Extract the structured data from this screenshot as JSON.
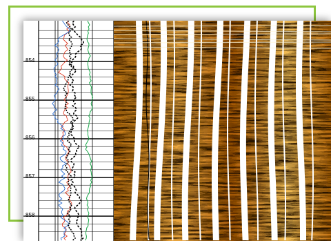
{
  "depth_track": {
    "ticks": [
      {
        "label": "854",
        "depth": 854
      },
      {
        "label": "855",
        "depth": 855
      },
      {
        "label": "856",
        "depth": 856
      },
      {
        "label": "857",
        "depth": 857
      },
      {
        "label": "858",
        "depth": 858
      }
    ]
  },
  "colors": {
    "frame_accent": "#8dc63f",
    "curve_red": "#e0402a",
    "curve_blue": "#2e6fd1",
    "curve_green": "#1aa84a",
    "curve_black": "#000000",
    "image_dark": "#3a1a05",
    "image_mid": "#b86a10",
    "image_light": "#f2c060"
  }
}
